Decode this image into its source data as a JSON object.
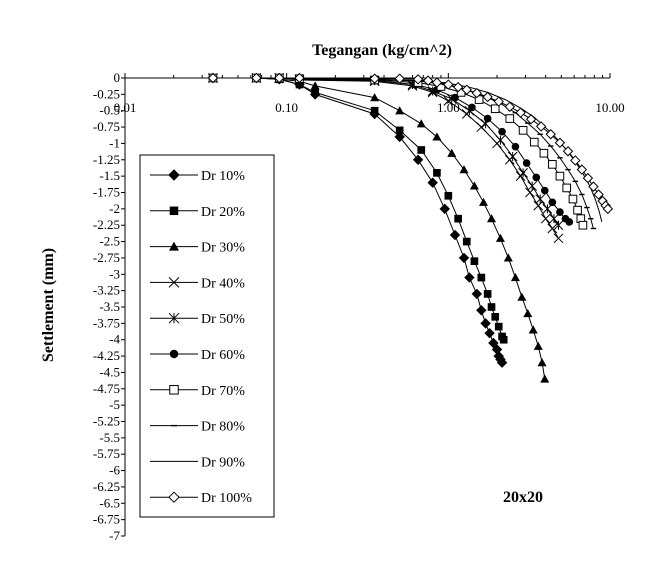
{
  "chart_data": {
    "type": "line",
    "title": "",
    "xlabel": "Tegangan (kg/cm^2)",
    "ylabel": "Settlement (mm)",
    "x_scale": "log",
    "xlim": [
      0.01,
      10
    ],
    "ylim": [
      -7,
      0
    ],
    "x_ticks": [
      "0.01",
      "0.10",
      "1.00",
      "10.00"
    ],
    "y_ticks": [
      "0",
      "-0.25",
      "-0.5",
      "-0.75",
      "-1",
      "-1.25",
      "-1.5",
      "-1.75",
      "-2",
      "-2.25",
      "-2.5",
      "-2.75",
      "-3",
      "-3.25",
      "-3.5",
      "-3.75",
      "-4",
      "-4.25",
      "-4.5",
      "-4.75",
      "-5",
      "-5.25",
      "-5.5",
      "-5.75",
      "-6",
      "-6.25",
      "-6.5",
      "-6.75",
      "-7"
    ],
    "x_axis_position": "top",
    "grid": false,
    "legend_position": "left",
    "annotation": "20x20",
    "series": [
      {
        "name": "Dr 10%",
        "marker": "diamond-filled",
        "x": [
          0.035,
          0.065,
          0.09,
          0.12,
          0.15,
          0.35,
          0.5,
          0.65,
          0.8,
          0.95,
          1.1,
          1.25,
          1.35,
          1.5,
          1.6,
          1.7,
          1.8,
          1.9,
          2.0,
          2.05,
          2.1,
          2.15
        ],
        "y": [
          0,
          0,
          -0.02,
          -0.1,
          -0.25,
          -0.55,
          -0.9,
          -1.25,
          -1.6,
          -2.0,
          -2.4,
          -2.75,
          -3.05,
          -3.3,
          -3.55,
          -3.75,
          -3.9,
          -4.05,
          -4.15,
          -4.25,
          -4.3,
          -4.35
        ]
      },
      {
        "name": "Dr 20%",
        "marker": "square-filled",
        "x": [
          0.035,
          0.065,
          0.09,
          0.12,
          0.15,
          0.35,
          0.5,
          0.68,
          0.85,
          1.0,
          1.15,
          1.3,
          1.45,
          1.6,
          1.75,
          1.85,
          1.95,
          2.05,
          2.15,
          2.2
        ],
        "y": [
          0,
          0,
          -0.02,
          -0.1,
          -0.22,
          -0.5,
          -0.8,
          -1.1,
          -1.45,
          -1.8,
          -2.15,
          -2.5,
          -2.8,
          -3.05,
          -3.3,
          -3.5,
          -3.65,
          -3.8,
          -3.95,
          -4.0
        ]
      },
      {
        "name": "Dr 30%",
        "marker": "triangle-filled",
        "x": [
          0.035,
          0.065,
          0.09,
          0.12,
          0.15,
          0.35,
          0.5,
          0.68,
          0.85,
          1.05,
          1.25,
          1.45,
          1.65,
          1.85,
          2.1,
          2.35,
          2.6,
          2.85,
          3.1,
          3.35,
          3.6,
          3.8,
          3.95
        ],
        "y": [
          0,
          0,
          -0.02,
          -0.05,
          -0.12,
          -0.3,
          -0.5,
          -0.7,
          -0.9,
          -1.15,
          -1.4,
          -1.65,
          -1.9,
          -2.15,
          -2.45,
          -2.75,
          -3.05,
          -3.35,
          -3.6,
          -3.85,
          -4.1,
          -4.35,
          -4.6
        ]
      },
      {
        "name": "Dr 40%",
        "marker": "x",
        "x": [
          0.035,
          0.065,
          0.09,
          0.12,
          0.35,
          0.6,
          0.8,
          1.0,
          1.3,
          1.6,
          2.0,
          2.4,
          2.8,
          3.2,
          3.6,
          4.0,
          4.4,
          4.8
        ],
        "y": [
          0,
          0,
          0,
          -0.03,
          -0.05,
          -0.12,
          -0.22,
          -0.35,
          -0.55,
          -0.75,
          -1.0,
          -1.25,
          -1.5,
          -1.75,
          -1.95,
          -2.15,
          -2.3,
          -2.45
        ]
      },
      {
        "name": "Dr 50%",
        "marker": "star",
        "x": [
          0.035,
          0.065,
          0.09,
          0.12,
          0.35,
          0.6,
          0.8,
          1.05,
          1.35,
          1.7,
          2.1,
          2.5,
          2.9,
          3.3,
          3.7,
          4.1,
          4.5,
          4.8
        ],
        "y": [
          0,
          0,
          0,
          -0.02,
          -0.04,
          -0.1,
          -0.2,
          -0.32,
          -0.5,
          -0.7,
          -0.95,
          -1.2,
          -1.45,
          -1.65,
          -1.85,
          -2.0,
          -2.15,
          -2.25
        ]
      },
      {
        "name": "Dr 60%",
        "marker": "circle-filled",
        "x": [
          0.035,
          0.065,
          0.09,
          0.12,
          0.35,
          0.62,
          0.85,
          1.1,
          1.4,
          1.75,
          2.15,
          2.6,
          3.05,
          3.5,
          3.95,
          4.4,
          4.9,
          5.3,
          5.6
        ],
        "y": [
          0,
          0,
          0,
          -0.02,
          -0.04,
          -0.1,
          -0.18,
          -0.3,
          -0.45,
          -0.62,
          -0.82,
          -1.05,
          -1.3,
          -1.52,
          -1.72,
          -1.9,
          -2.05,
          -2.15,
          -2.2
        ]
      },
      {
        "name": "Dr 70%",
        "marker": "square-open",
        "x": [
          0.035,
          0.065,
          0.09,
          0.12,
          0.35,
          0.65,
          0.9,
          1.2,
          1.55,
          1.95,
          2.4,
          2.9,
          3.4,
          3.9,
          4.4,
          4.9,
          5.4,
          5.9,
          6.3,
          6.6,
          6.8
        ],
        "y": [
          0,
          0,
          0,
          -0.01,
          -0.03,
          -0.07,
          -0.13,
          -0.22,
          -0.33,
          -0.47,
          -0.62,
          -0.8,
          -0.98,
          -1.15,
          -1.32,
          -1.5,
          -1.68,
          -1.85,
          -2.02,
          -2.15,
          -2.25
        ]
      },
      {
        "name": "Dr 80%",
        "marker": "dash",
        "x": [
          0.035,
          0.065,
          0.09,
          0.12,
          0.35,
          0.68,
          0.95,
          1.25,
          1.65,
          2.1,
          2.6,
          3.1,
          3.7,
          4.3,
          4.9,
          5.5,
          6.1,
          6.7,
          7.2,
          7.6,
          7.9
        ],
        "y": [
          0,
          0,
          0,
          -0.01,
          -0.02,
          -0.05,
          -0.1,
          -0.17,
          -0.27,
          -0.39,
          -0.53,
          -0.69,
          -0.86,
          -1.04,
          -1.22,
          -1.4,
          -1.58,
          -1.78,
          -1.98,
          -2.15,
          -2.3
        ]
      },
      {
        "name": "Dr 90%",
        "marker": "none",
        "x": [
          0.035,
          0.065,
          0.09,
          0.12,
          0.35,
          0.7,
          1.0,
          1.35,
          1.75,
          2.25,
          2.8,
          3.4,
          4.0,
          4.7,
          5.4,
          6.1,
          6.8,
          7.5,
          8.1,
          8.6,
          8.9
        ],
        "y": [
          0,
          0,
          0,
          -0.01,
          -0.02,
          -0.04,
          -0.08,
          -0.14,
          -0.22,
          -0.33,
          -0.46,
          -0.6,
          -0.76,
          -0.93,
          -1.1,
          -1.28,
          -1.46,
          -1.65,
          -1.85,
          -2.05,
          -2.2
        ]
      },
      {
        "name": "Dr 100%",
        "marker": "diamond-open",
        "x": [
          0.035,
          0.065,
          0.09,
          0.12,
          0.35,
          0.5,
          0.65,
          0.75,
          0.85,
          1.0,
          1.15,
          1.3,
          1.5,
          1.75,
          2.05,
          2.4,
          2.8,
          3.25,
          3.75,
          4.3,
          4.9,
          5.5,
          6.1,
          6.7,
          7.3,
          7.9,
          8.5,
          9.0,
          9.4,
          9.7
        ],
        "y": [
          0,
          0,
          0,
          0,
          -0.01,
          -0.01,
          -0.02,
          -0.04,
          -0.07,
          -0.1,
          -0.14,
          -0.18,
          -0.23,
          -0.29,
          -0.36,
          -0.44,
          -0.53,
          -0.63,
          -0.74,
          -0.86,
          -0.99,
          -1.12,
          -1.26,
          -1.4,
          -1.53,
          -1.66,
          -1.78,
          -1.88,
          -1.95,
          -2.0
        ]
      }
    ]
  }
}
